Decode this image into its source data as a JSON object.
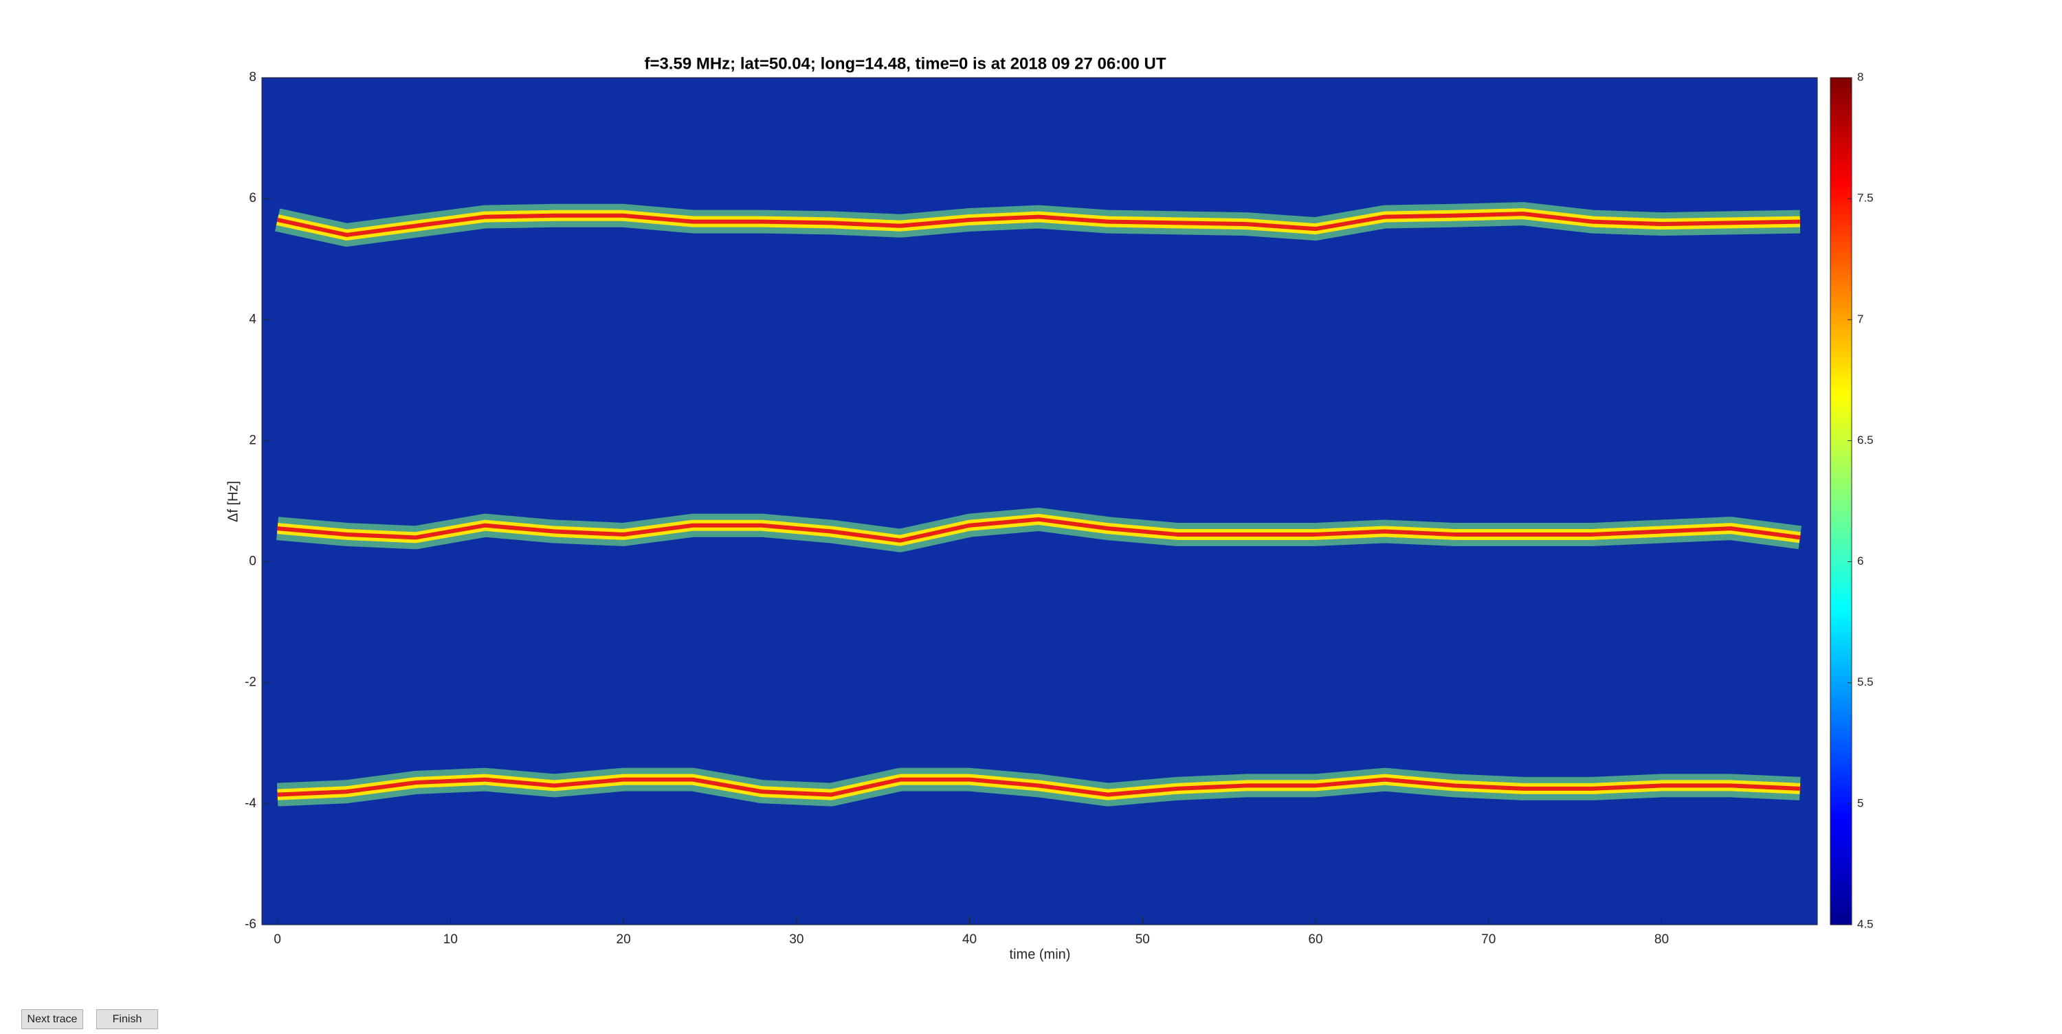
{
  "chart_data": {
    "type": "spectrogram",
    "title": "f=3.59 MHz;  lat=50.04; long=14.48, time=0 is at 2018 09 27 06:00 UT",
    "xlabel": "time (min)",
    "ylabel": "Δf [Hz]",
    "x": [
      0,
      4,
      8,
      12,
      16,
      20,
      24,
      28,
      32,
      36,
      40,
      44,
      48,
      52,
      56,
      60,
      64,
      68,
      72,
      76,
      80,
      84,
      88
    ],
    "series": [
      {
        "color": "#e8201a",
        "values": [
          5.65,
          5.4,
          5.55,
          5.7,
          5.72,
          5.72,
          5.62,
          5.62,
          5.6,
          5.55,
          5.65,
          5.7,
          5.62,
          5.6,
          5.58,
          5.5,
          5.7,
          5.72,
          5.75,
          5.62,
          5.58,
          5.6,
          5.62
        ]
      },
      {
        "color": "#e8201a",
        "values": [
          0.55,
          0.45,
          0.4,
          0.6,
          0.5,
          0.45,
          0.6,
          0.6,
          0.5,
          0.35,
          0.6,
          0.7,
          0.55,
          0.45,
          0.45,
          0.45,
          0.5,
          0.45,
          0.45,
          0.45,
          0.5,
          0.55,
          0.4
        ]
      },
      {
        "color": "#e8201a",
        "values": [
          -3.85,
          -3.8,
          -3.65,
          -3.6,
          -3.7,
          -3.6,
          -3.6,
          -3.8,
          -3.85,
          -3.6,
          -3.6,
          -3.7,
          -3.85,
          -3.75,
          -3.7,
          -3.7,
          -3.6,
          -3.7,
          -3.75,
          -3.75,
          -3.7,
          -3.7,
          -3.75
        ]
      }
    ],
    "xlim": [
      -0.9,
      89
    ],
    "xticks": [
      0,
      10,
      20,
      30,
      40,
      50,
      60,
      70,
      80
    ],
    "ylim": [
      -6,
      8
    ],
    "yticks": [
      -6,
      -4,
      -2,
      0,
      2,
      4,
      6,
      8
    ],
    "clim": [
      4.5,
      8
    ],
    "cticks": [
      4.5,
      5,
      5.5,
      6,
      6.5,
      7,
      7.5,
      8
    ],
    "plot_color": "#0d2fa3"
  },
  "buttons": [
    "Next trace",
    "Finish"
  ]
}
